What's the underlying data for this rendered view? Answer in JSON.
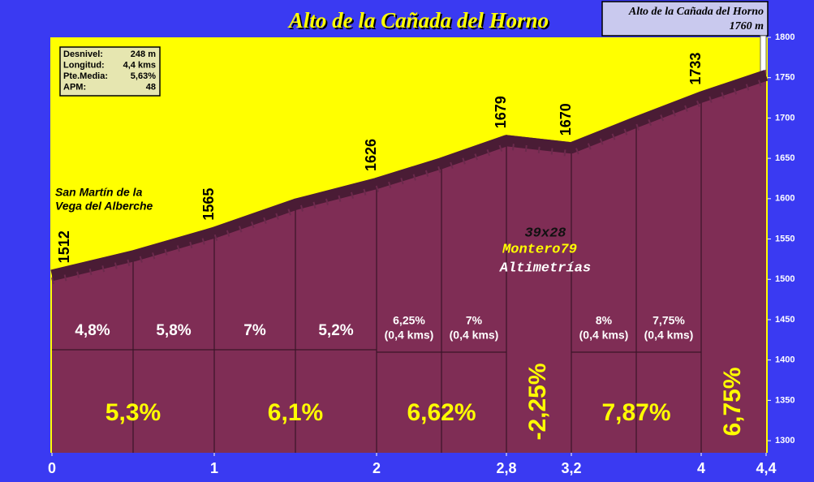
{
  "chart_data": {
    "type": "profile",
    "title": "Alto de la Cañada del Horno",
    "summit_box": [
      "Alto de la Cañada del Horno",
      "1760 m"
    ],
    "stats": [
      [
        "Desnivel:",
        "248 m"
      ],
      [
        "Longitud:",
        "4,4 kms"
      ],
      [
        "Pte.Media:",
        "5,63%"
      ],
      [
        "APM:",
        "48"
      ]
    ],
    "start_label": [
      "San Martín de la",
      "Vega del Alberche"
    ],
    "watermark": [
      "39x28",
      "Montero79",
      "Altimetrías"
    ],
    "profile": {
      "x": [
        0,
        0.5,
        1,
        1.5,
        2,
        2.4,
        2.8,
        3.2,
        3.6,
        4,
        4.4
      ],
      "values": [
        1512,
        1536,
        1565,
        1600,
        1626,
        1651,
        1679,
        1670,
        1702,
        1733,
        1760
      ],
      "value_labels": [
        "1512",
        null,
        "1565",
        null,
        "1626",
        null,
        "1679",
        "1670",
        null,
        "1733",
        null
      ],
      "color": "#7f2d55",
      "edge_color": "#4a1c35"
    },
    "sections": [
      {
        "from": 0,
        "to": 1,
        "label": "5,3%",
        "parts": [
          {
            "from": 0,
            "to": 0.5,
            "label": "4,8%"
          },
          {
            "from": 0.5,
            "to": 1,
            "label": "5,8%"
          }
        ]
      },
      {
        "from": 1,
        "to": 2,
        "label": "6,1%",
        "parts": [
          {
            "from": 1,
            "to": 1.5,
            "label": "7%"
          },
          {
            "from": 1.5,
            "to": 2,
            "label": "5,2%"
          }
        ]
      },
      {
        "from": 2,
        "to": 2.8,
        "label": "6,62%",
        "parts": [
          {
            "from": 2,
            "to": 2.4,
            "label": "6,25%",
            "sublabel": "(0,4 kms)"
          },
          {
            "from": 2.4,
            "to": 2.8,
            "label": "7%",
            "sublabel": "(0,4 kms)"
          }
        ]
      },
      {
        "from": 2.8,
        "to": 3.2,
        "label": "-2,25%",
        "parts": []
      },
      {
        "from": 3.2,
        "to": 4,
        "label": "7,87%",
        "parts": [
          {
            "from": 3.2,
            "to": 3.6,
            "label": "8%",
            "sublabel": "(0,4 kms)"
          },
          {
            "from": 3.6,
            "to": 4,
            "label": "7,75%",
            "sublabel": "(0,4 kms)"
          }
        ]
      },
      {
        "from": 4,
        "to": 4.4,
        "label": "6,75%",
        "parts": []
      }
    ],
    "xlim": [
      0,
      4.4
    ],
    "xticks": [
      0,
      1,
      2,
      {
        "value": 2.8,
        "label": "2,8"
      },
      {
        "value": 3.2,
        "label": "3,2"
      },
      4,
      {
        "value": 4.4,
        "label": "4,4"
      }
    ],
    "ylim": [
      1285,
      1800
    ],
    "yticks": [
      1300,
      1350,
      1400,
      1450,
      1500,
      1550,
      1600,
      1650,
      1700,
      1750,
      1800
    ]
  }
}
